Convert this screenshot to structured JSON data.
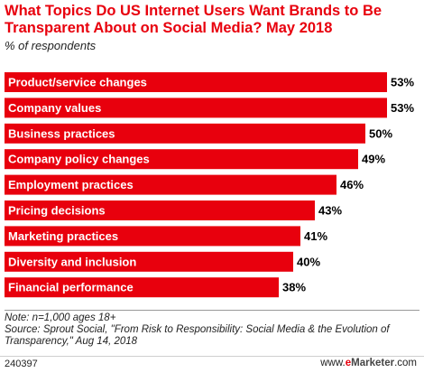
{
  "title": "What Topics Do US Internet Users Want Brands to Be Transparent About on Social Media? May 2018",
  "subtitle": "% of respondents",
  "note": "Note: n=1,000 ages 18+",
  "source": "Source: Sprout Social, \"From Risk to Responsibility: Social Media & the Evolution of Transparency,\" Aug 14, 2018",
  "chart_id": "240397",
  "brand": {
    "prefix": "www.",
    "logo_e": "e",
    "logo_rest": "Marketer",
    "suffix": ".com"
  },
  "colors": {
    "bar": "#e8000d",
    "title": "#e8000d"
  },
  "chart_data": {
    "type": "bar",
    "orientation": "horizontal",
    "categories": [
      "Product/service changes",
      "Company values",
      "Business practices",
      "Company policy changes",
      "Employment practices",
      "Pricing decisions",
      "Marketing practices",
      "Diversity and inclusion",
      "Financial performance"
    ],
    "values": [
      53,
      53,
      50,
      49,
      46,
      43,
      41,
      40,
      38
    ],
    "value_labels": [
      "53%",
      "53%",
      "50%",
      "49%",
      "46%",
      "43%",
      "41%",
      "40%",
      "38%"
    ],
    "xlim": [
      0,
      57
    ],
    "grid": false,
    "legend": "none"
  }
}
